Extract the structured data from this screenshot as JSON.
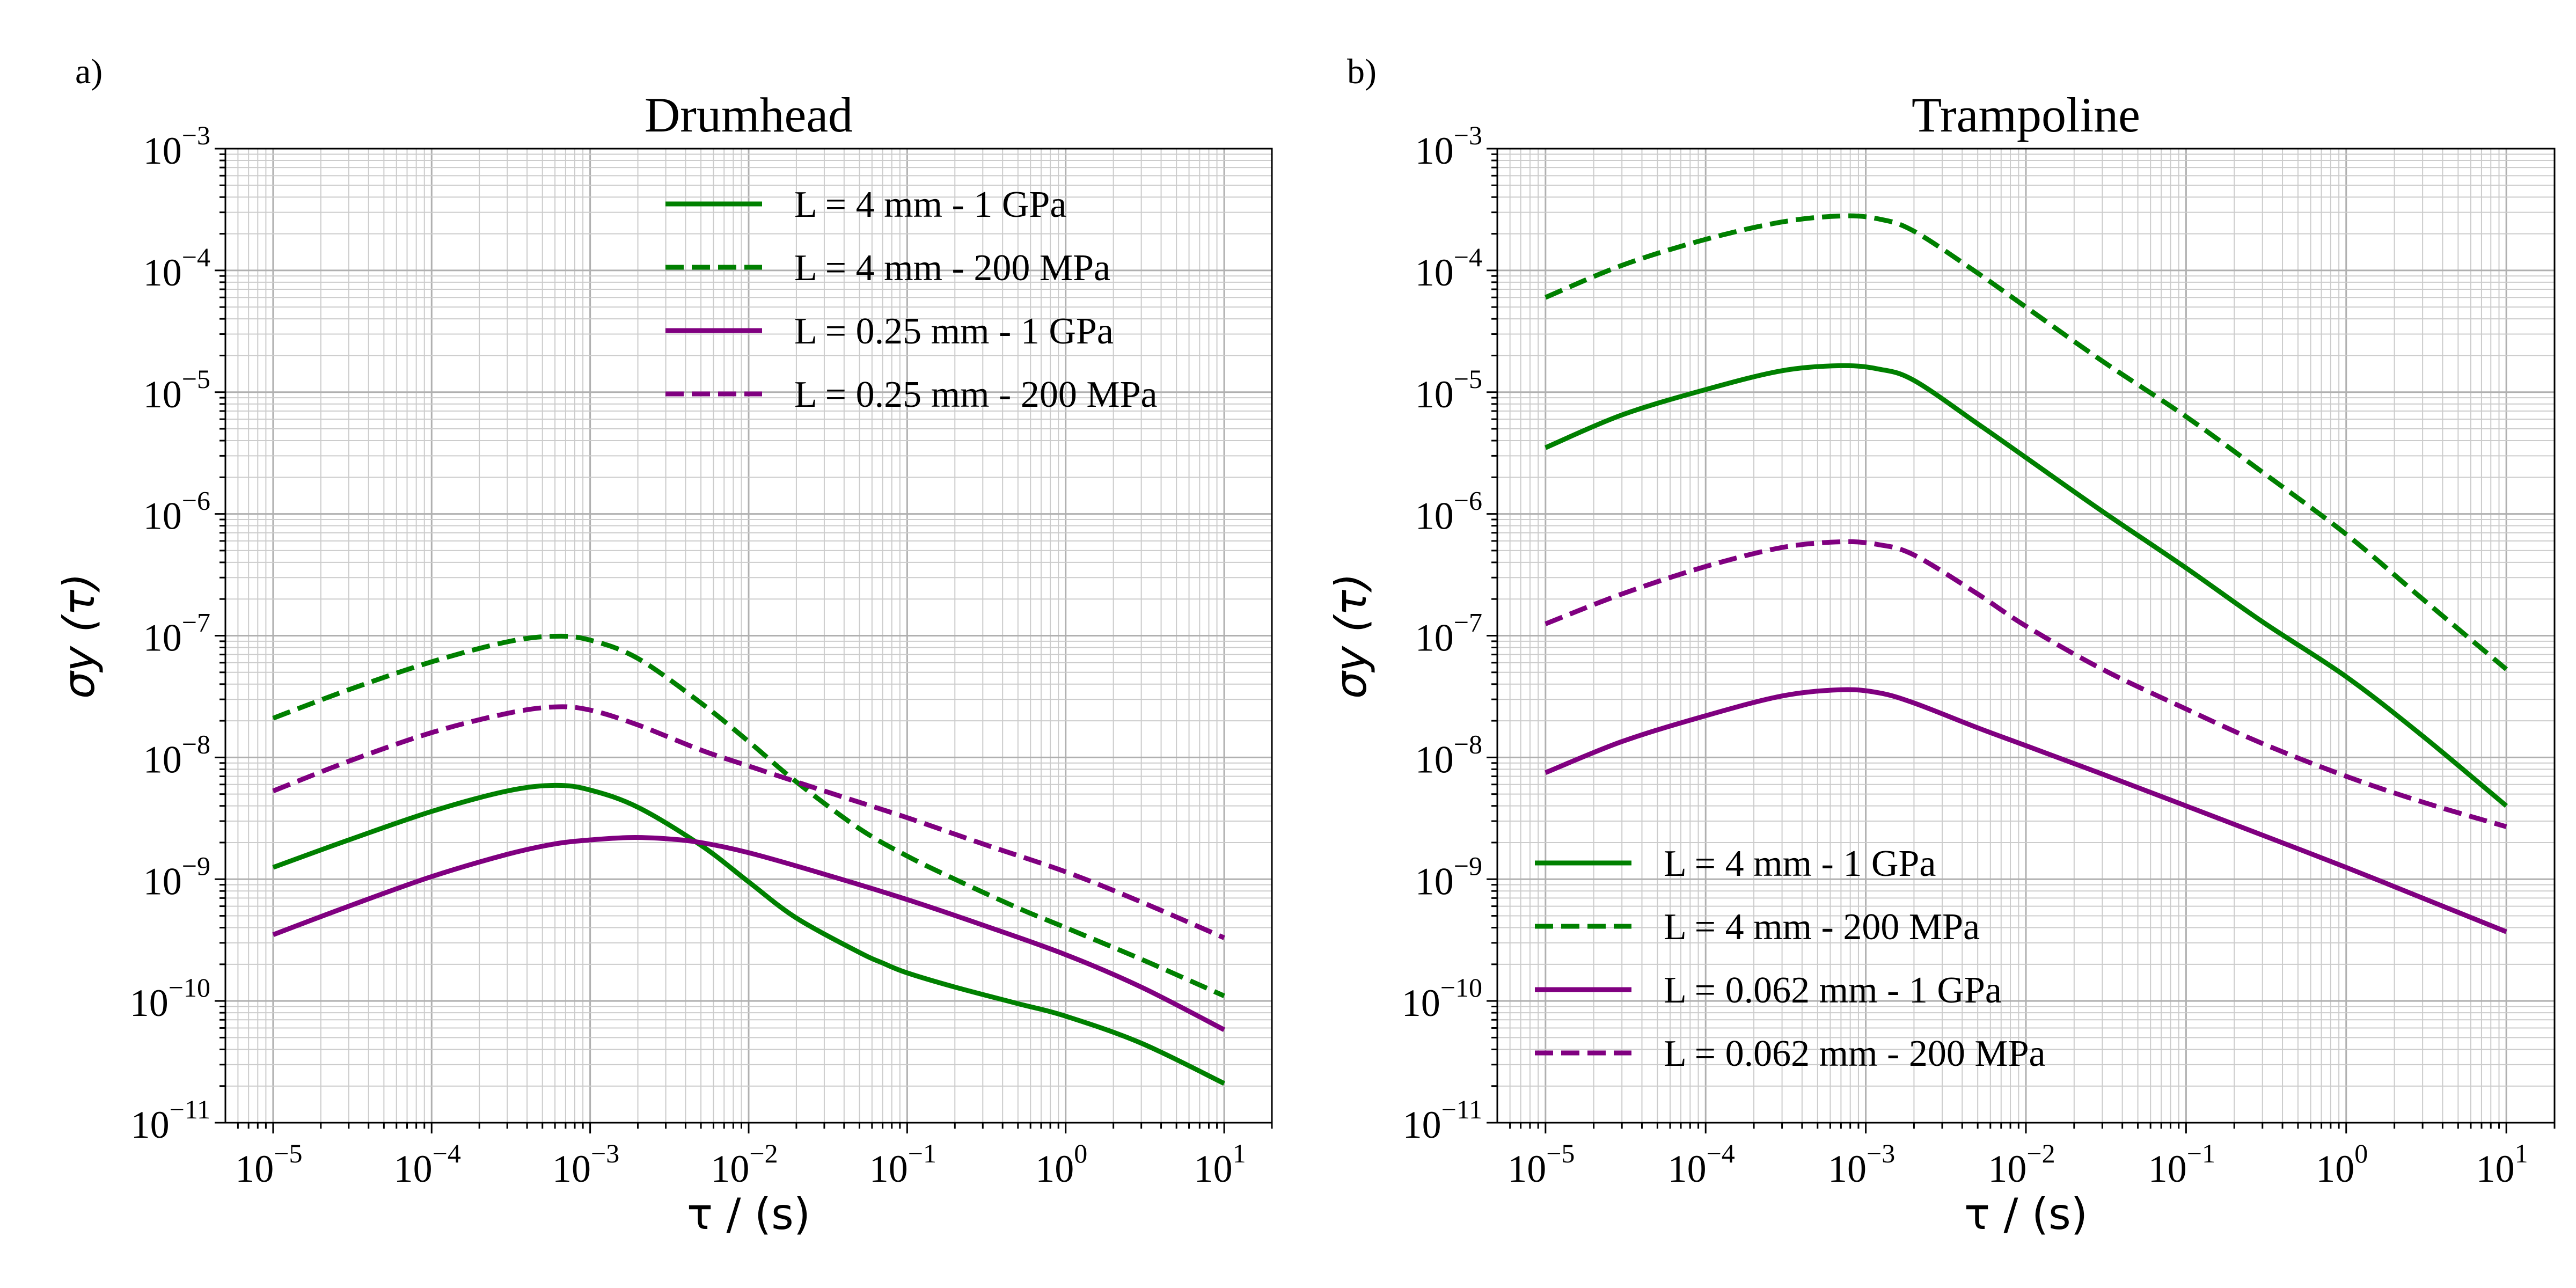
{
  "colors": {
    "green": "#008000",
    "purple": "#800080"
  },
  "chart_data": [
    {
      "type": "line",
      "panel_label": "a)",
      "title": "Drumhead",
      "xlabel": "τ / (s)",
      "ylabel": "σy (τ)",
      "xscale": "log",
      "yscale": "log",
      "xlim": [
        5e-06,
        20
      ],
      "ylim": [
        1e-11,
        0.001
      ],
      "grid": true,
      "legend_placement": "upper-right",
      "x_tick_exponents": [
        "-5",
        "-4",
        "-3",
        "-2",
        "-1",
        "0",
        "1"
      ],
      "y_tick_exponents": [
        "-11",
        "-10",
        "-9",
        "-8",
        "-7",
        "-6",
        "-5",
        "-4",
        "-3"
      ],
      "tick_base": "10",
      "series": [
        {
          "name": "L = 4 mm - 1 GPa",
          "color": "#008000",
          "style": "solid",
          "x": [
            1e-05,
            3e-05,
            0.0001,
            0.0003,
            0.0006,
            0.001,
            0.002,
            0.005,
            0.01,
            0.02,
            0.05,
            0.07,
            0.1,
            0.2,
            0.5,
            1,
            3,
            10
          ],
          "y": [
            1.25e-09,
            2.1e-09,
            3.6e-09,
            5.3e-09,
            5.9e-09,
            5.4e-09,
            3.9e-09,
            1.9e-09,
            9.5e-10,
            4.8e-10,
            2.5e-10,
            2.05e-10,
            1.7e-10,
            1.3e-10,
            9.5e-11,
            7.5e-11,
            4.5e-11,
            2.1e-11
          ]
        },
        {
          "name": "L = 4 mm - 200 MPa",
          "color": "#008000",
          "style": "dashed",
          "x": [
            1e-05,
            3e-05,
            0.0001,
            0.0003,
            0.0006,
            0.001,
            0.002,
            0.005,
            0.01,
            0.02,
            0.05,
            0.1,
            0.2,
            0.5,
            1,
            3,
            10
          ],
          "y": [
            2.1e-08,
            3.6e-08,
            6.1e-08,
            8.9e-08,
            9.9e-08,
            9.2e-08,
            6.5e-08,
            2.8e-08,
            1.35e-08,
            6.3e-09,
            2.6e-09,
            1.55e-09,
            1e-09,
            5.8e-10,
            4e-10,
            2.2e-10,
            1.1e-10
          ]
        },
        {
          "name": "L = 0.25 mm - 1 GPa",
          "color": "#800080",
          "style": "solid",
          "x": [
            1e-05,
            3e-05,
            0.0001,
            0.0003,
            0.0006,
            0.001,
            0.0018,
            0.003,
            0.005,
            0.01,
            0.03,
            0.1,
            0.3,
            1,
            3,
            10
          ],
          "y": [
            3.5e-10,
            6e-10,
            1.05e-09,
            1.6e-09,
            1.95e-09,
            2.1e-09,
            2.2e-09,
            2.15e-09,
            2e-09,
            1.65e-09,
            1.1e-09,
            6.8e-10,
            4.2e-10,
            2.4e-10,
            1.3e-10,
            5.8e-11
          ]
        },
        {
          "name": "L = 0.25 mm - 200 MPa",
          "color": "#800080",
          "style": "dashed",
          "x": [
            1e-05,
            3e-05,
            0.0001,
            0.0003,
            0.0006,
            0.001,
            0.002,
            0.005,
            0.01,
            0.03,
            0.1,
            0.3,
            1,
            3,
            10
          ],
          "y": [
            5.3e-09,
            9.3e-09,
            1.6e-08,
            2.3e-08,
            2.6e-08,
            2.45e-08,
            1.85e-08,
            1.15e-08,
            8.5e-09,
            5.3e-09,
            3.2e-09,
            1.95e-09,
            1.15e-09,
            6.5e-10,
            3.3e-10
          ]
        }
      ]
    },
    {
      "type": "line",
      "panel_label": "b)",
      "title": "Trampoline",
      "xlabel": "τ / (s)",
      "ylabel": "σy (τ)",
      "xscale": "log",
      "yscale": "log",
      "xlim": [
        5e-06,
        20
      ],
      "ylim": [
        1e-11,
        0.001
      ],
      "grid": true,
      "legend_placement": "lower-left",
      "x_tick_exponents": [
        "-5",
        "-4",
        "-3",
        "-2",
        "-1",
        "0",
        "1"
      ],
      "y_tick_exponents": [
        "-11",
        "-10",
        "-9",
        "-8",
        "-7",
        "-6",
        "-5",
        "-4",
        "-3"
      ],
      "tick_base": "10",
      "series": [
        {
          "name": "L = 4 mm - 1 GPa",
          "color": "#008000",
          "style": "solid",
          "x": [
            1e-05,
            3e-05,
            0.0001,
            0.0003,
            0.0007,
            0.0012,
            0.002,
            0.005,
            0.01,
            0.03,
            0.1,
            0.3,
            1,
            3,
            10
          ],
          "y": [
            3.5e-06,
            6.5e-06,
            1.05e-05,
            1.5e-05,
            1.65e-05,
            1.55e-05,
            1.25e-05,
            5.5e-06,
            2.9e-06,
            1.05e-06,
            3.6e-07,
            1.3e-07,
            4.6e-08,
            1.5e-08,
            4e-09
          ]
        },
        {
          "name": "L = 4 mm - 200 MPa",
          "color": "#008000",
          "style": "dashed",
          "x": [
            1e-05,
            3e-05,
            0.0001,
            0.0003,
            0.0007,
            0.0012,
            0.002,
            0.005,
            0.01,
            0.03,
            0.1,
            0.3,
            1,
            3,
            10
          ],
          "y": [
            6e-05,
            0.00011,
            0.00018,
            0.00025,
            0.00028,
            0.000265,
            0.00021,
            9.5e-05,
            5e-05,
            1.8e-05,
            6.3e-06,
            2.2e-06,
            6.8e-07,
            2e-07,
            5.3e-08
          ]
        },
        {
          "name": "L = 0.062 mm - 1 GPa",
          "color": "#800080",
          "style": "solid",
          "x": [
            1e-05,
            3e-05,
            0.0001,
            0.0003,
            0.0007,
            0.0012,
            0.002,
            0.005,
            0.01,
            0.03,
            0.1,
            0.3,
            1,
            3,
            10
          ],
          "y": [
            7.5e-09,
            1.35e-08,
            2.2e-08,
            3.2e-08,
            3.6e-08,
            3.4e-08,
            2.8e-08,
            1.75e-08,
            1.25e-08,
            7.3e-09,
            4e-09,
            2.3e-09,
            1.25e-09,
            7e-10,
            3.7e-10
          ]
        },
        {
          "name": "L = 0.062 mm - 200 MPa",
          "color": "#800080",
          "style": "dashed",
          "x": [
            1e-05,
            3e-05,
            0.0001,
            0.0003,
            0.0007,
            0.0012,
            0.002,
            0.005,
            0.01,
            0.03,
            0.1,
            0.3,
            1,
            3,
            10
          ],
          "y": [
            1.25e-07,
            2.2e-07,
            3.7e-07,
            5.3e-07,
            5.9e-07,
            5.6e-07,
            4.6e-07,
            2.2e-07,
            1.2e-07,
            5.3e-08,
            2.5e-08,
            1.3e-08,
            7e-09,
            4.3e-09,
            2.7e-09
          ]
        }
      ]
    }
  ]
}
